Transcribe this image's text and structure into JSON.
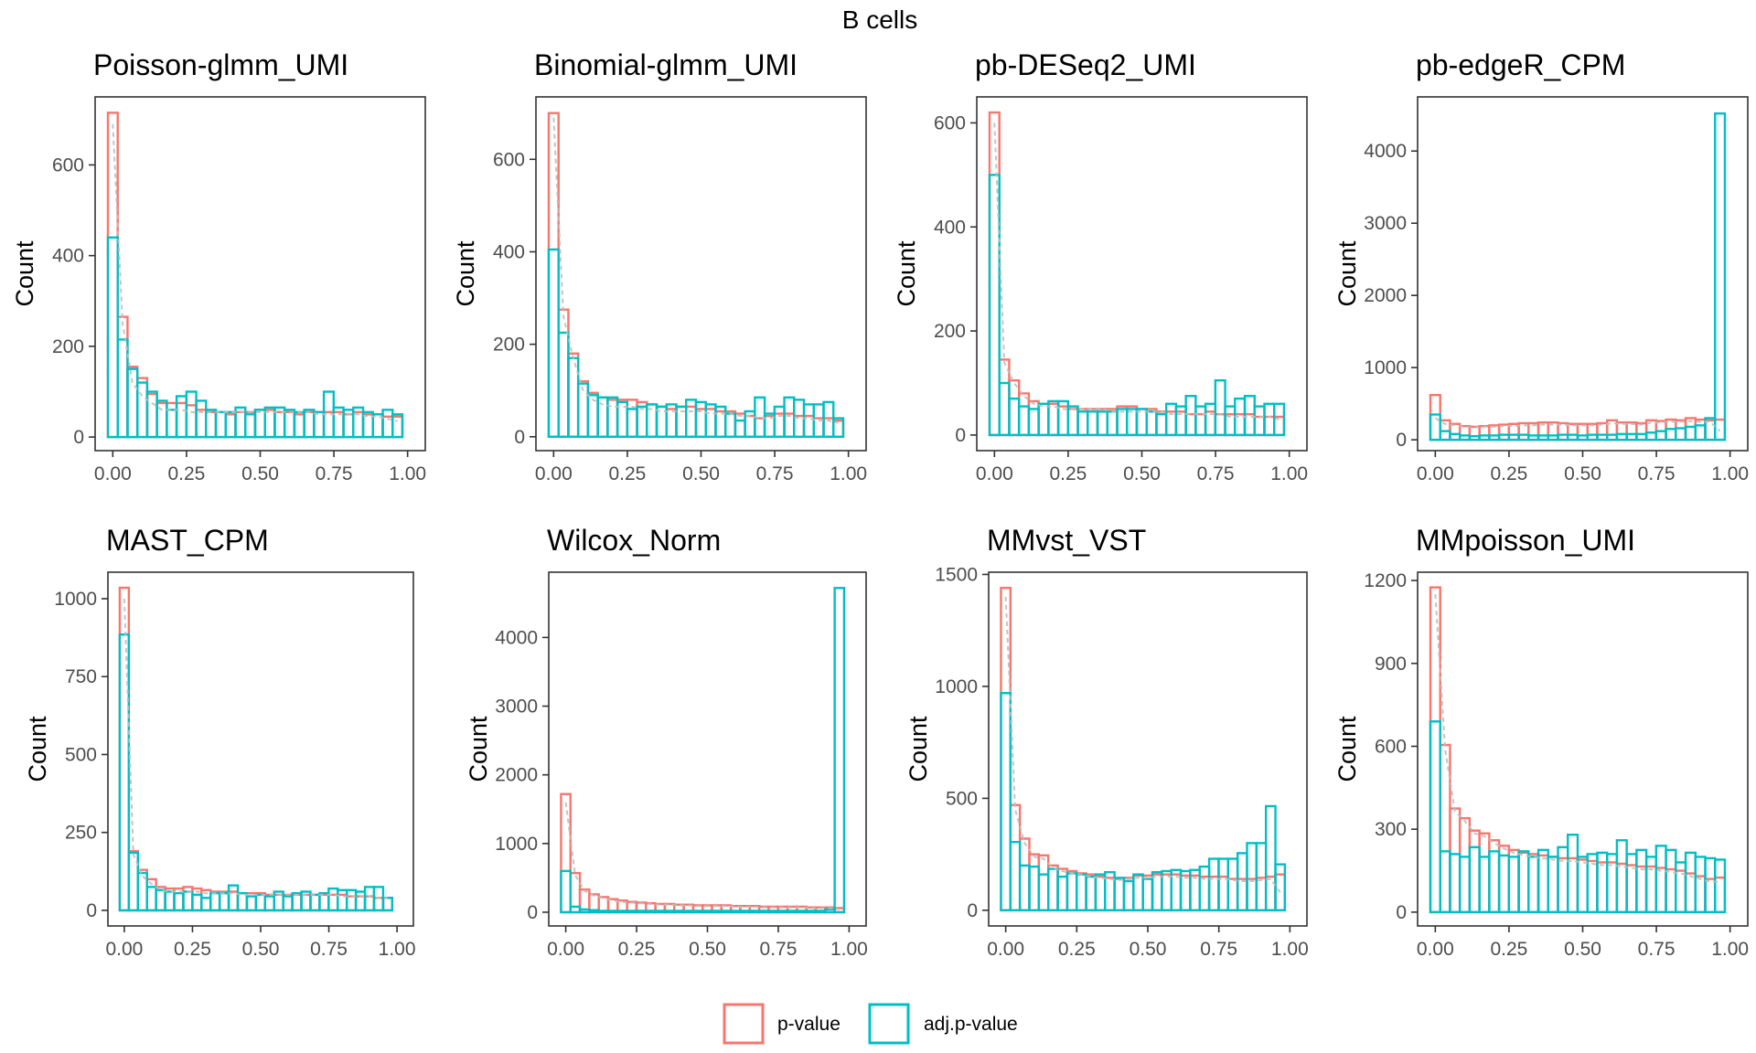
{
  "figure": {
    "title": "B cells",
    "colors": {
      "p_value": "#F8766D",
      "adj_p_value": "#00BFC4",
      "null_line": "#BEBEBE",
      "panel_border": "#333333"
    },
    "legend": {
      "position": "bottom",
      "items": [
        {
          "label": "p-value",
          "color": "#F8766D"
        },
        {
          "label": "adj.p-value",
          "color": "#00BFC4"
        }
      ]
    }
  },
  "chart_data": [
    {
      "type": "histogram",
      "title": "Poisson-glmm_UMI",
      "ylabel": "Count",
      "xlim": [
        -0.06,
        1.06
      ],
      "ylim": [
        -30,
        750
      ],
      "xticks": [
        0,
        0.25,
        0.5,
        0.75,
        1
      ],
      "xtick_labels": [
        "0.00",
        "0.25",
        "0.50",
        "0.75",
        "1.00"
      ],
      "yticks": [
        0,
        200,
        400,
        600
      ],
      "ytick_labels": [
        "0",
        "200",
        "400",
        "600"
      ],
      "bin_width": 0.0333,
      "series": [
        {
          "name": "p-value",
          "values": [
            715,
            265,
            155,
            130,
            95,
            75,
            75,
            75,
            70,
            60,
            55,
            55,
            50,
            55,
            55,
            60,
            60,
            55,
            55,
            50,
            55,
            55,
            55,
            55,
            50,
            55,
            50,
            50,
            45,
            45
          ]
        },
        {
          "name": "adj.p-value",
          "values": [
            440,
            215,
            150,
            120,
            100,
            80,
            60,
            90,
            100,
            80,
            60,
            55,
            55,
            65,
            50,
            60,
            65,
            65,
            60,
            55,
            60,
            55,
            100,
            65,
            60,
            65,
            55,
            50,
            60,
            50
          ]
        }
      ],
      "null_line": [
        690,
        250,
        120,
        90,
        75,
        60,
        60,
        60,
        55,
        55,
        55,
        55,
        55,
        55,
        55,
        55,
        55,
        55,
        55,
        55,
        55,
        50,
        50,
        50,
        50,
        50,
        45,
        45,
        40,
        35
      ]
    },
    {
      "type": "histogram",
      "title": "Binomial-glmm_UMI",
      "ylabel": "Count",
      "xlim": [
        -0.06,
        1.06
      ],
      "ylim": [
        -30,
        735
      ],
      "xticks": [
        0,
        0.25,
        0.5,
        0.75,
        1
      ],
      "xtick_labels": [
        "0.00",
        "0.25",
        "0.50",
        "0.75",
        "1.00"
      ],
      "yticks": [
        0,
        200,
        400,
        600
      ],
      "ytick_labels": [
        "0",
        "200",
        "400",
        "600"
      ],
      "bin_width": 0.0333,
      "series": [
        {
          "name": "p-value",
          "values": [
            700,
            275,
            180,
            120,
            95,
            85,
            80,
            80,
            80,
            75,
            70,
            65,
            60,
            65,
            65,
            60,
            60,
            55,
            55,
            50,
            45,
            40,
            45,
            50,
            50,
            45,
            45,
            40,
            40,
            35
          ]
        },
        {
          "name": "adj.p-value",
          "values": [
            405,
            225,
            170,
            115,
            90,
            85,
            85,
            75,
            60,
            65,
            70,
            65,
            70,
            65,
            80,
            75,
            70,
            65,
            50,
            35,
            55,
            85,
            50,
            65,
            85,
            80,
            70,
            70,
            75,
            40
          ]
        }
      ],
      "null_line": [
        690,
        260,
        170,
        100,
        80,
        70,
        65,
        65,
        65,
        60,
        60,
        55,
        55,
        55,
        55,
        55,
        50,
        50,
        50,
        45,
        45,
        40,
        40,
        45,
        45,
        40,
        40,
        35,
        35,
        30
      ]
    },
    {
      "type": "histogram",
      "title": "pb-DESeq2_UMI",
      "ylabel": "Count",
      "xlim": [
        -0.06,
        1.06
      ],
      "ylim": [
        -30,
        650
      ],
      "xticks": [
        0,
        0.25,
        0.5,
        0.75,
        1
      ],
      "xtick_labels": [
        "0.00",
        "0.25",
        "0.50",
        "0.75",
        "1.00"
      ],
      "yticks": [
        0,
        200,
        400,
        600
      ],
      "ytick_labels": [
        "0",
        "200",
        "400",
        "600"
      ],
      "bin_width": 0.0333,
      "series": [
        {
          "name": "p-value",
          "values": [
            620,
            145,
            105,
            80,
            65,
            60,
            60,
            55,
            50,
            50,
            50,
            50,
            50,
            55,
            55,
            50,
            50,
            45,
            45,
            45,
            40,
            40,
            45,
            40,
            40,
            40,
            40,
            35,
            35,
            35
          ]
        },
        {
          "name": "adj.p-value",
          "values": [
            500,
            100,
            70,
            55,
            50,
            60,
            65,
            65,
            55,
            45,
            45,
            45,
            45,
            50,
            50,
            50,
            45,
            40,
            60,
            55,
            75,
            55,
            60,
            105,
            55,
            70,
            75,
            55,
            60,
            60
          ]
        }
      ],
      "null_line": [
        600,
        140,
        100,
        75,
        60,
        55,
        55,
        50,
        50,
        50,
        50,
        50,
        45,
        45,
        45,
        45,
        45,
        45,
        40,
        40,
        40,
        40,
        40,
        40,
        35,
        35,
        35,
        35,
        35,
        30
      ]
    },
    {
      "type": "histogram",
      "title": "pb-edgeR_CPM",
      "ylabel": "Count",
      "xlim": [
        -0.06,
        1.06
      ],
      "ylim": [
        -150,
        4750
      ],
      "xticks": [
        0,
        0.25,
        0.5,
        0.75,
        1
      ],
      "xtick_labels": [
        "0.00",
        "0.25",
        "0.50",
        "0.75",
        "1.00"
      ],
      "yticks": [
        0,
        1000,
        2000,
        3000,
        4000
      ],
      "ytick_labels": [
        "0",
        "1000",
        "2000",
        "3000",
        "4000"
      ],
      "bin_width": 0.0333,
      "series": [
        {
          "name": "p-value",
          "values": [
            620,
            270,
            220,
            190,
            180,
            190,
            200,
            210,
            220,
            230,
            230,
            240,
            240,
            230,
            220,
            220,
            220,
            230,
            270,
            240,
            240,
            230,
            270,
            260,
            280,
            270,
            300,
            280,
            270,
            280
          ]
        },
        {
          "name": "adj.p-value",
          "values": [
            350,
            120,
            80,
            60,
            50,
            60,
            60,
            70,
            70,
            70,
            60,
            60,
            60,
            70,
            70,
            60,
            70,
            70,
            70,
            80,
            80,
            80,
            100,
            120,
            150,
            160,
            180,
            200,
            300,
            4520
          ]
        }
      ],
      "null_line": [
        300,
        220,
        200,
        180,
        170,
        180,
        180,
        190,
        190,
        200,
        200,
        210,
        210,
        210,
        200,
        200,
        200,
        210,
        230,
        220,
        220,
        210,
        240,
        240,
        250,
        250,
        260,
        250,
        250,
        120
      ]
    },
    {
      "type": "histogram",
      "title": "MAST_CPM",
      "ylabel": "Count",
      "xlim": [
        -0.06,
        1.06
      ],
      "ylim": [
        -50,
        1085
      ],
      "xticks": [
        0,
        0.25,
        0.5,
        0.75,
        1
      ],
      "xtick_labels": [
        "0.00",
        "0.25",
        "0.50",
        "0.75",
        "1.00"
      ],
      "yticks": [
        0,
        250,
        500,
        750,
        1000
      ],
      "ytick_labels": [
        "0",
        "250",
        "500",
        "750",
        "1000"
      ],
      "bin_width": 0.0333,
      "series": [
        {
          "name": "p-value",
          "values": [
            1035,
            190,
            130,
            100,
            75,
            70,
            70,
            75,
            70,
            65,
            60,
            60,
            60,
            55,
            55,
            55,
            50,
            50,
            50,
            50,
            50,
            50,
            50,
            50,
            50,
            45,
            45,
            45,
            40,
            40
          ]
        },
        {
          "name": "adj.p-value",
          "values": [
            885,
            185,
            120,
            75,
            65,
            60,
            55,
            60,
            50,
            40,
            55,
            55,
            80,
            55,
            45,
            50,
            45,
            60,
            45,
            55,
            60,
            50,
            55,
            70,
            65,
            65,
            60,
            75,
            75,
            40
          ]
        }
      ],
      "null_line": [
        1000,
        180,
        110,
        85,
        65,
        60,
        60,
        60,
        60,
        55,
        55,
        55,
        55,
        50,
        50,
        50,
        50,
        50,
        50,
        50,
        50,
        50,
        50,
        50,
        45,
        45,
        45,
        45,
        40,
        40
      ]
    },
    {
      "type": "histogram",
      "title": "Wilcox_Norm",
      "ylabel": "Count",
      "xlim": [
        -0.06,
        1.06
      ],
      "ylim": [
        -200,
        4950
      ],
      "xticks": [
        0,
        0.25,
        0.5,
        0.75,
        1
      ],
      "xtick_labels": [
        "0.00",
        "0.25",
        "0.50",
        "0.75",
        "1.00"
      ],
      "yticks": [
        0,
        1000,
        2000,
        3000,
        4000
      ],
      "ytick_labels": [
        "0",
        "1000",
        "2000",
        "3000",
        "4000"
      ],
      "bin_width": 0.0333,
      "series": [
        {
          "name": "p-value",
          "values": [
            1720,
            570,
            330,
            260,
            220,
            190,
            170,
            150,
            140,
            130,
            120,
            120,
            110,
            110,
            100,
            100,
            100,
            100,
            90,
            90,
            90,
            80,
            80,
            80,
            80,
            80,
            70,
            70,
            70,
            60
          ]
        },
        {
          "name": "adj.p-value",
          "values": [
            600,
            80,
            40,
            30,
            20,
            20,
            20,
            20,
            20,
            20,
            20,
            20,
            20,
            20,
            20,
            20,
            20,
            20,
            20,
            20,
            20,
            20,
            20,
            20,
            20,
            20,
            20,
            20,
            40,
            4720
          ]
        }
      ],
      "null_line": [
        1600,
        540,
        310,
        240,
        200,
        170,
        150,
        140,
        130,
        120,
        110,
        110,
        100,
        100,
        90,
        90,
        90,
        90,
        80,
        80,
        80,
        70,
        70,
        70,
        70,
        70,
        60,
        60,
        60,
        40
      ]
    },
    {
      "type": "histogram",
      "title": "MMvst_VST",
      "ylabel": "Count",
      "xlim": [
        -0.06,
        1.06
      ],
      "ylim": [
        -70,
        1510
      ],
      "xticks": [
        0,
        0.25,
        0.5,
        0.75,
        1
      ],
      "xtick_labels": [
        "0.00",
        "0.25",
        "0.50",
        "0.75",
        "1.00"
      ],
      "yticks": [
        0,
        500,
        1000,
        1500
      ],
      "ytick_labels": [
        "0",
        "500",
        "1000",
        "1500"
      ],
      "bin_width": 0.0333,
      "series": [
        {
          "name": "p-value",
          "values": [
            1440,
            470,
            320,
            250,
            245,
            200,
            185,
            175,
            165,
            160,
            150,
            145,
            140,
            145,
            155,
            155,
            160,
            160,
            160,
            155,
            155,
            150,
            150,
            150,
            140,
            140,
            140,
            145,
            150,
            160
          ]
        },
        {
          "name": "adj.p-value",
          "values": [
            970,
            305,
            200,
            195,
            160,
            185,
            150,
            165,
            160,
            150,
            160,
            170,
            145,
            130,
            160,
            140,
            170,
            175,
            180,
            175,
            180,
            195,
            230,
            230,
            230,
            255,
            300,
            300,
            465,
            205
          ]
        }
      ],
      "null_line": [
        1400,
        450,
        300,
        240,
        230,
        190,
        175,
        165,
        160,
        150,
        145,
        140,
        135,
        140,
        145,
        145,
        150,
        150,
        150,
        145,
        145,
        140,
        140,
        140,
        135,
        130,
        130,
        135,
        140,
        80
      ]
    },
    {
      "type": "histogram",
      "title": "MMpoisson_UMI",
      "ylabel": "Count",
      "xlim": [
        -0.06,
        1.06
      ],
      "ylim": [
        -50,
        1230
      ],
      "xticks": [
        0,
        0.25,
        0.5,
        0.75,
        1
      ],
      "xtick_labels": [
        "0.00",
        "0.25",
        "0.50",
        "0.75",
        "1.00"
      ],
      "yticks": [
        0,
        300,
        600,
        900,
        1200
      ],
      "ytick_labels": [
        "0",
        "300",
        "600",
        "900",
        "1200"
      ],
      "bin_width": 0.0333,
      "series": [
        {
          "name": "p-value",
          "values": [
            1175,
            605,
            375,
            340,
            295,
            285,
            260,
            240,
            225,
            215,
            210,
            205,
            200,
            195,
            195,
            190,
            185,
            180,
            180,
            175,
            170,
            165,
            165,
            160,
            155,
            150,
            140,
            130,
            120,
            125
          ]
        },
        {
          "name": "adj.p-value",
          "values": [
            690,
            220,
            210,
            200,
            235,
            200,
            220,
            205,
            200,
            220,
            200,
            225,
            200,
            235,
            280,
            200,
            210,
            215,
            210,
            260,
            210,
            225,
            200,
            240,
            225,
            180,
            215,
            200,
            195,
            190
          ]
        }
      ],
      "null_line": [
        1150,
        590,
        365,
        330,
        285,
        275,
        250,
        230,
        215,
        205,
        200,
        195,
        190,
        185,
        185,
        180,
        175,
        170,
        170,
        165,
        160,
        155,
        155,
        150,
        145,
        140,
        130,
        120,
        110,
        110
      ]
    }
  ]
}
